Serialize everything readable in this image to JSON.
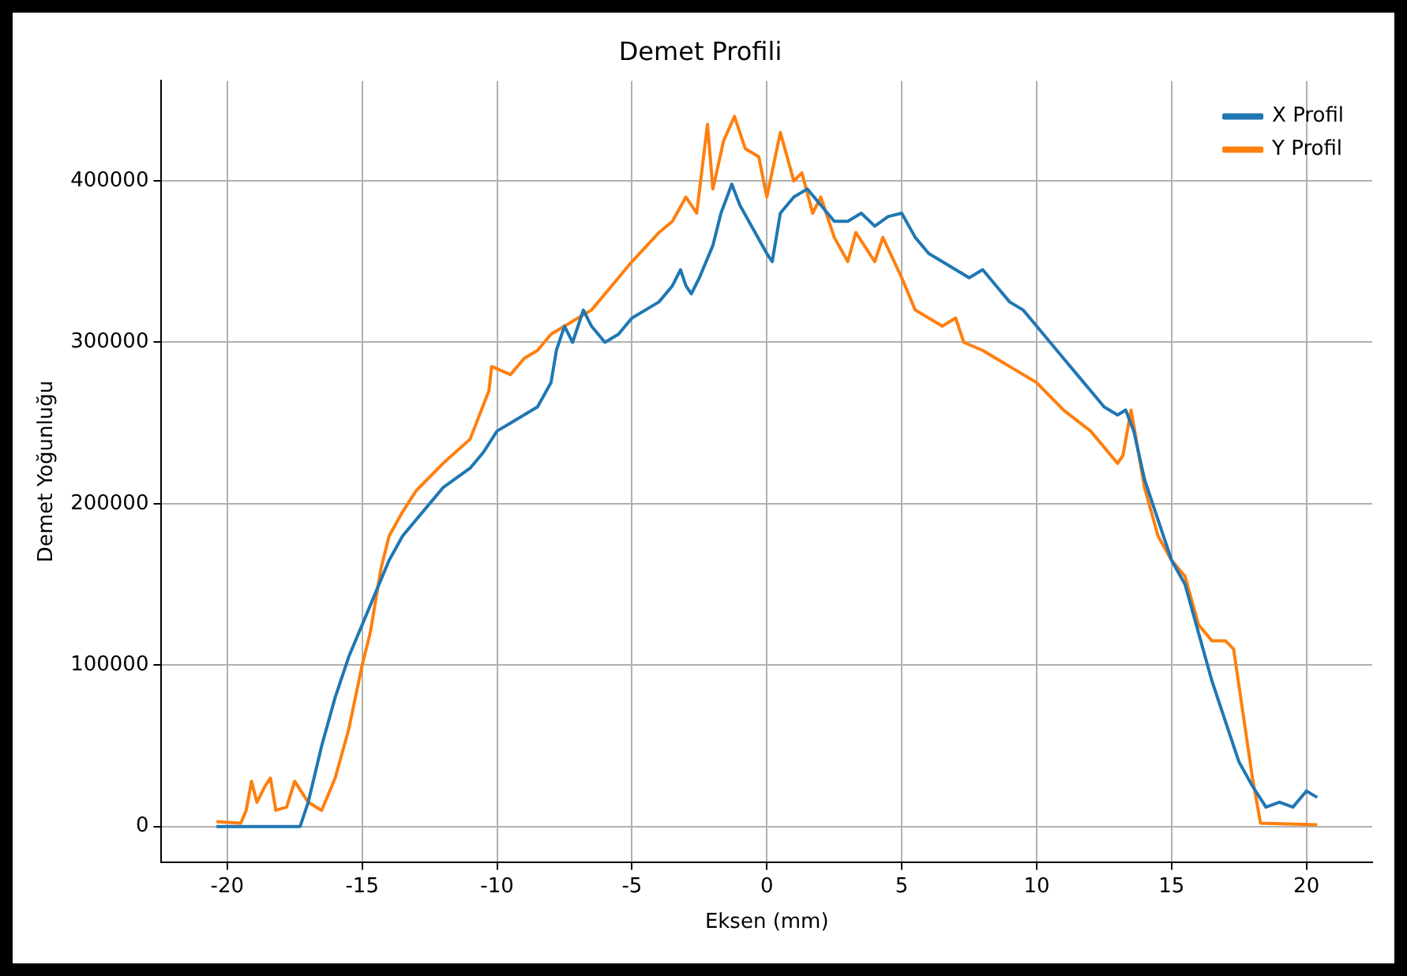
{
  "chart_data": {
    "type": "line",
    "title": "Demet Profili",
    "xlabel": "Eksen (mm)",
    "ylabel": "Demet Yoğunluğu",
    "xlim": [
      -22.44,
      22.44
    ],
    "ylim": [
      -22000,
      462000
    ],
    "xticks": [
      -20,
      -15,
      -10,
      -5,
      0,
      5,
      10,
      15,
      20
    ],
    "yticks": [
      0,
      100000,
      200000,
      300000,
      400000
    ],
    "grid": true,
    "legend": "top right",
    "marker": "none",
    "line_style": "solid",
    "series": [
      {
        "name": "X Profil",
        "color": "#1f77b4",
        "x": [
          -20.4,
          -17.3,
          -17,
          -16.5,
          -16,
          -15.5,
          -15,
          -14.5,
          -14,
          -13.5,
          -13,
          -12.5,
          -12,
          -11,
          -10.5,
          -10,
          -9.5,
          -9,
          -8.5,
          -8,
          -7.8,
          -7.5,
          -7.2,
          -6.8,
          -6.5,
          -6,
          -5.5,
          -5,
          -4.5,
          -4,
          -3.5,
          -3.2,
          -3,
          -2.8,
          -2.5,
          -2,
          -1.7,
          -1.3,
          -1,
          -0.5,
          0,
          0.2,
          0.5,
          1,
          1.5,
          2,
          2.5,
          3,
          3.5,
          4,
          4.5,
          5,
          5.5,
          6,
          6.5,
          7,
          7.5,
          8,
          8.5,
          9,
          9.5,
          10,
          10.5,
          11,
          11.5,
          12,
          12.5,
          13,
          13.3,
          13.6,
          14,
          14.5,
          15,
          15.5,
          16,
          16.5,
          17,
          17.5,
          18,
          18.5,
          19,
          19.5,
          20,
          20.4
        ],
        "values": [
          0,
          0,
          15000,
          50000,
          80000,
          105000,
          125000,
          145000,
          165000,
          180000,
          190000,
          200000,
          210000,
          222000,
          232000,
          245000,
          250000,
          255000,
          260000,
          275000,
          295000,
          310000,
          300000,
          320000,
          310000,
          300000,
          305000,
          315000,
          320000,
          325000,
          335000,
          345000,
          335000,
          330000,
          340000,
          360000,
          380000,
          398000,
          385000,
          370000,
          355000,
          350000,
          380000,
          390000,
          395000,
          385000,
          375000,
          375000,
          380000,
          372000,
          378000,
          380000,
          365000,
          355000,
          350000,
          345000,
          340000,
          345000,
          335000,
          325000,
          320000,
          310000,
          300000,
          290000,
          280000,
          270000,
          260000,
          255000,
          258000,
          245000,
          215000,
          190000,
          165000,
          150000,
          120000,
          90000,
          65000,
          40000,
          25000,
          12000,
          15000,
          12000,
          22000,
          18000
        ]
      },
      {
        "name": "Y Profil",
        "color": "#ff7f0e",
        "x": [
          -20.4,
          -19.5,
          -19.3,
          -19.1,
          -18.9,
          -18.6,
          -18.4,
          -18.2,
          -17.8,
          -17.5,
          -17,
          -16.5,
          -16,
          -15.5,
          -15,
          -14.7,
          -14.3,
          -14,
          -13.5,
          -13,
          -12,
          -11,
          -10.3,
          -10.2,
          -9.5,
          -9,
          -8.5,
          -8,
          -7.5,
          -7,
          -6.5,
          -6,
          -5,
          -4,
          -3.5,
          -3,
          -2.6,
          -2.2,
          -2,
          -1.6,
          -1.2,
          -0.8,
          -0.3,
          0,
          0.5,
          1,
          1.3,
          1.7,
          2,
          2.5,
          3,
          3.3,
          4,
          4.3,
          5,
          5.5,
          6,
          6.5,
          7,
          7.3,
          8,
          9,
          10,
          11,
          12,
          13,
          13.2,
          13.5,
          14,
          14.5,
          15,
          15.5,
          16,
          16.5,
          17,
          17.3,
          18,
          18.3,
          20.4
        ],
        "values": [
          3000,
          2000,
          10000,
          28000,
          15000,
          25000,
          30000,
          10000,
          12000,
          28000,
          15000,
          10000,
          30000,
          60000,
          100000,
          120000,
          160000,
          180000,
          195000,
          208000,
          225000,
          240000,
          270000,
          285000,
          280000,
          290000,
          295000,
          305000,
          310000,
          315000,
          320000,
          330000,
          350000,
          368000,
          375000,
          390000,
          380000,
          435000,
          395000,
          425000,
          440000,
          420000,
          415000,
          390000,
          430000,
          400000,
          405000,
          380000,
          390000,
          365000,
          350000,
          368000,
          350000,
          365000,
          340000,
          320000,
          315000,
          310000,
          315000,
          300000,
          295000,
          285000,
          275000,
          258000,
          245000,
          225000,
          230000,
          258000,
          210000,
          180000,
          165000,
          155000,
          125000,
          115000,
          115000,
          110000,
          30000,
          2000,
          1000
        ]
      }
    ]
  }
}
